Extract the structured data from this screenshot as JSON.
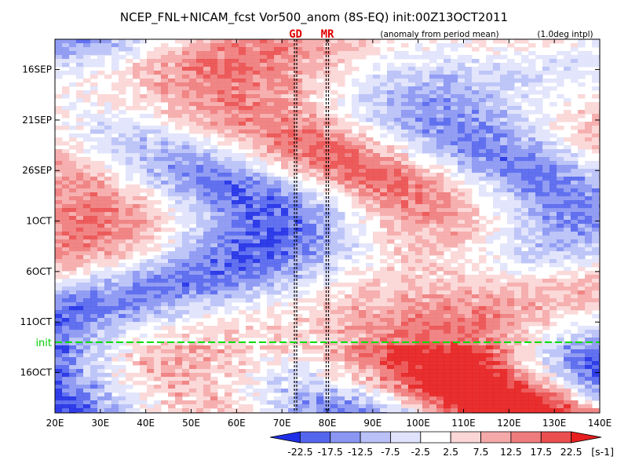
{
  "chart_data": {
    "type": "heatmap",
    "title": "NCEP_FNL+NICAM_fcst Vor500_anom (8S-EQ) init:00Z13OCT2011",
    "subtitle_left": "(anomaly from period mean)",
    "subtitle_right": "(1.0deg intpl)",
    "x_ticks": [
      "20E",
      "30E",
      "40E",
      "50E",
      "60E",
      "70E",
      "80E",
      "90E",
      "100E",
      "110E",
      "120E",
      "130E",
      "140E"
    ],
    "x_values": [
      20,
      30,
      40,
      50,
      60,
      70,
      80,
      90,
      100,
      110,
      120,
      130,
      140
    ],
    "xlim": [
      20,
      140
    ],
    "y_ticks": [
      "16SEP",
      "21SEP",
      "26SEP",
      "1OCT",
      "6OCT",
      "11OCT",
      "16OCT"
    ],
    "y_dates": [
      "2011-09-16",
      "2011-09-21",
      "2011-09-26",
      "2011-10-01",
      "2011-10-06",
      "2011-10-11",
      "2011-10-16"
    ],
    "ylim": [
      "2011-09-13",
      "2011-10-20"
    ],
    "init_line": {
      "label": "init",
      "date": "2011-10-13",
      "color": "#00dd00"
    },
    "markers": [
      {
        "label": "GD",
        "lon": 73
      },
      {
        "label": "MR",
        "lon": 80
      }
    ],
    "colorbar": {
      "levels": [
        "-22.5",
        "-17.5",
        "-12.5",
        "-7.5",
        "-2.5",
        "2.5",
        "7.5",
        "12.5",
        "17.5",
        "22.5"
      ],
      "colors": [
        "#1e2ee6",
        "#5566ee",
        "#8a96f2",
        "#b9c1f7",
        "#dfe3fb",
        "#ffffff",
        "#fbd6d6",
        "#f5a9a9",
        "#ef7c7c",
        "#eb4e4e",
        "#e61e1e"
      ],
      "unit": "[s-1]"
    }
  }
}
